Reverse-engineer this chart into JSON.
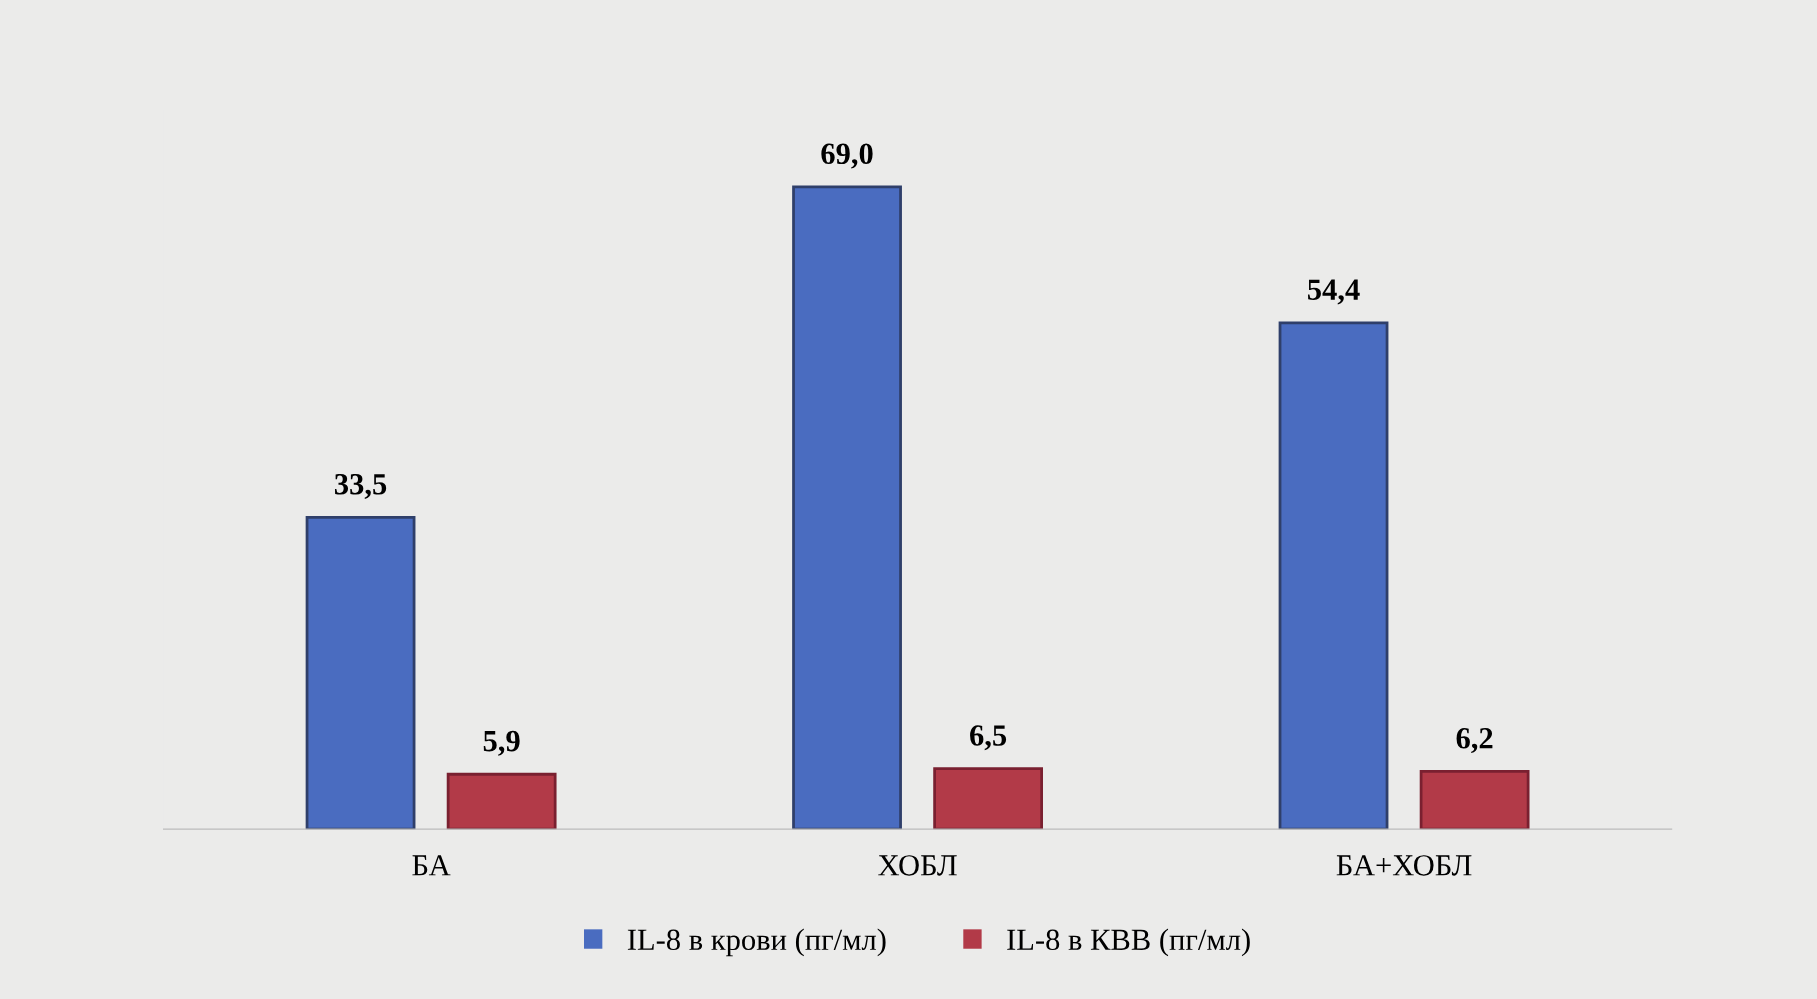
{
  "chart_data": {
    "type": "bar",
    "categories": [
      "БА",
      "ХОБЛ",
      "БА+ХОБЛ"
    ],
    "series": [
      {
        "name": "IL-8 в крови (пг/мл)",
        "color": "#4a6cc0",
        "values": [
          33.5,
          69.0,
          54.4
        ],
        "value_labels": [
          "33,5",
          "69,0",
          "54,4"
        ]
      },
      {
        "name": "IL-8 в КВВ (пг/мл)",
        "color": "#b23a48",
        "values": [
          5.9,
          6.5,
          6.2
        ],
        "value_labels": [
          "5,9",
          "6,5",
          "6,2"
        ]
      }
    ],
    "legend": "bottom",
    "grid": false
  }
}
